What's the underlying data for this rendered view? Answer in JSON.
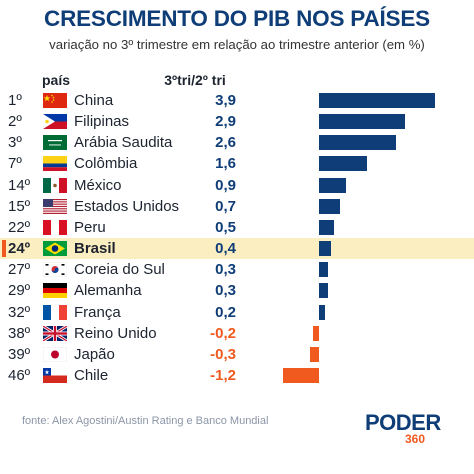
{
  "title": "CRESCIMENTO DO PIB NOS PAÍSES",
  "subtitle": "variação no 3º trimestre em relação ao trimestre anterior (em %)",
  "header": {
    "country_label": "país",
    "value_label": "3ºtri/2º tri"
  },
  "source": "fonte: Alex Agostini/Austin Rating e Banco Mundial",
  "logo": {
    "main": "PODER",
    "sub": "360"
  },
  "colors": {
    "positive": "#0f3d77",
    "negative": "#f05a1e",
    "highlight": "#fbeec0"
  },
  "chart_data": {
    "type": "bar",
    "orientation": "horizontal",
    "title": "CRESCIMENTO DO PIB NOS PAÍSES",
    "subtitle": "variação no 3º trimestre em relação ao trimestre anterior (em %)",
    "highlight": "Brasil",
    "rows": [
      {
        "rank": "1º",
        "country": "China",
        "flag": "china-flag",
        "label": "3,9",
        "value": 3.9
      },
      {
        "rank": "2º",
        "country": "Filipinas",
        "flag": "philippines-flag",
        "label": "2,9",
        "value": 2.9
      },
      {
        "rank": "3º",
        "country": "Arábia Saudita",
        "flag": "saudi-arabia-flag",
        "label": "2,6",
        "value": 2.6
      },
      {
        "rank": "7º",
        "country": "Colômbia",
        "flag": "colombia-flag",
        "label": "1,6",
        "value": 1.6
      },
      {
        "rank": "14º",
        "country": "México",
        "flag": "mexico-flag",
        "label": "0,9",
        "value": 0.9
      },
      {
        "rank": "15º",
        "country": "Estados Unidos",
        "flag": "usa-flag",
        "label": "0,7",
        "value": 0.7
      },
      {
        "rank": "22º",
        "country": "Peru",
        "flag": "peru-flag",
        "label": "0,5",
        "value": 0.5
      },
      {
        "rank": "24º",
        "country": "Brasil",
        "flag": "brazil-flag",
        "label": "0,4",
        "value": 0.4
      },
      {
        "rank": "27º",
        "country": "Coreia do Sul",
        "flag": "south-korea-flag",
        "label": "0,3",
        "value": 0.3
      },
      {
        "rank": "29º",
        "country": "Alemanha",
        "flag": "germany-flag",
        "label": "0,3",
        "value": 0.3
      },
      {
        "rank": "32º",
        "country": "França",
        "flag": "france-flag",
        "label": "0,2",
        "value": 0.2
      },
      {
        "rank": "38º",
        "country": "Reino Unido",
        "flag": "uk-flag",
        "label": "-0,2",
        "value": -0.2
      },
      {
        "rank": "39º",
        "country": "Japão",
        "flag": "japan-flag",
        "label": "-0,3",
        "value": -0.3
      },
      {
        "rank": "46º",
        "country": "Chile",
        "flag": "chile-flag",
        "label": "-1,2",
        "value": -1.2
      }
    ]
  }
}
